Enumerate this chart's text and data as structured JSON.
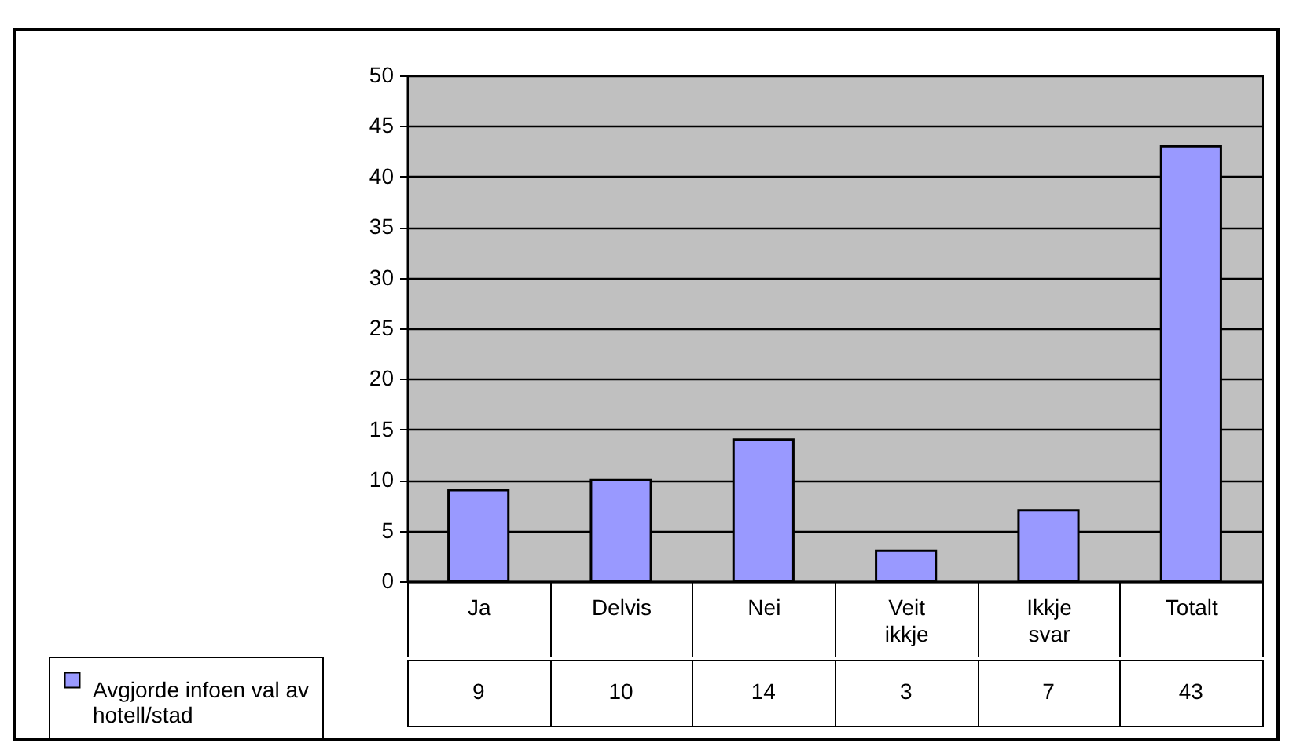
{
  "chart_data": {
    "type": "bar",
    "categories": [
      "Ja",
      "Delvis",
      "Nei",
      "Veit ikkje",
      "Ikkje svar",
      "Totalt"
    ],
    "series": [
      {
        "name": "Avgjorde infoen val av hotell/stad",
        "color": "#9999ff",
        "values": [
          9,
          10,
          14,
          3,
          7,
          43
        ],
        "value_labels": [
          "9",
          "10",
          "14",
          "3",
          "7",
          "43"
        ]
      }
    ],
    "ylim": [
      0,
      50
    ],
    "yticks": [
      0,
      5,
      10,
      15,
      20,
      25,
      30,
      35,
      40,
      45,
      50
    ],
    "grid": "y",
    "legend": "bottom left"
  }
}
